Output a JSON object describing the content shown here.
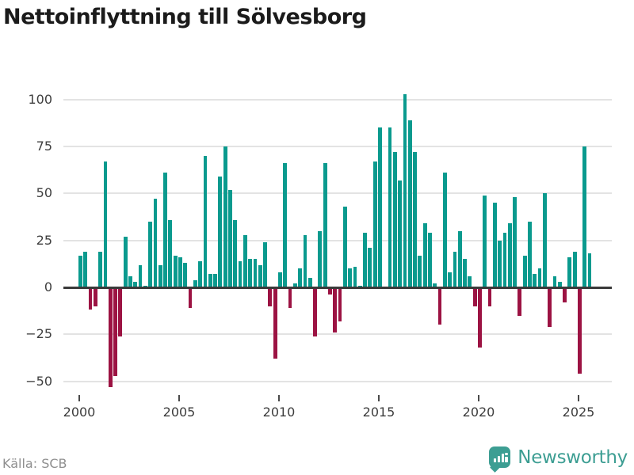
{
  "title": "Nettoinflyttning till Sölvesborg",
  "source": "Källa: SCB",
  "brand": {
    "name": "Newsworthy",
    "color": "#3d9e93"
  },
  "colors": {
    "positive": "#0a9a8e",
    "negative": "#9c1343",
    "grid": "#e3e3e3",
    "zero_axis": "#3a3a3a",
    "tick_text": "#3c3c3c",
    "muted_text": "#8f8f8f",
    "title_text": "#1b1b1b"
  },
  "chart_data": {
    "type": "bar",
    "title": "Nettoinflyttning till Sölvesborg",
    "xlabel": "",
    "ylabel": "",
    "period": "quarterly",
    "start_year": 2000,
    "start_quarter": 1,
    "end_year": 2025,
    "end_quarter": 3,
    "values": [
      17,
      19,
      -12,
      -10,
      19,
      67,
      -53,
      -47,
      -26,
      27,
      6,
      3,
      12,
      1,
      35,
      47,
      12,
      61,
      36,
      17,
      16,
      13,
      -11,
      4,
      14,
      70,
      7,
      7,
      59,
      75,
      52,
      36,
      14,
      28,
      15,
      15,
      12,
      24,
      -10,
      -38,
      8,
      66,
      -11,
      2,
      10,
      28,
      5,
      -26,
      30,
      66,
      -4,
      -24,
      -18,
      43,
      10,
      11,
      1,
      29,
      21,
      67,
      85,
      -1,
      85,
      72,
      57,
      103,
      89,
      72,
      17,
      34,
      29,
      2,
      -20,
      61,
      8,
      19,
      30,
      15,
      6,
      -10,
      -32,
      49,
      -10,
      45,
      25,
      29,
      34,
      48,
      -15,
      17,
      35,
      7,
      10,
      50,
      -21,
      6,
      3,
      -8,
      16,
      19,
      -46,
      75,
      18
    ],
    "x_tick_years": [
      2000,
      2005,
      2010,
      2015,
      2020,
      2025
    ],
    "y_ticks": [
      100,
      75,
      50,
      25,
      0,
      -25,
      -50
    ],
    "ylim": [
      -60,
      110
    ],
    "grid": true,
    "legend": "none",
    "positive_color": "#0a9a8e",
    "negative_color": "#9c1343"
  }
}
